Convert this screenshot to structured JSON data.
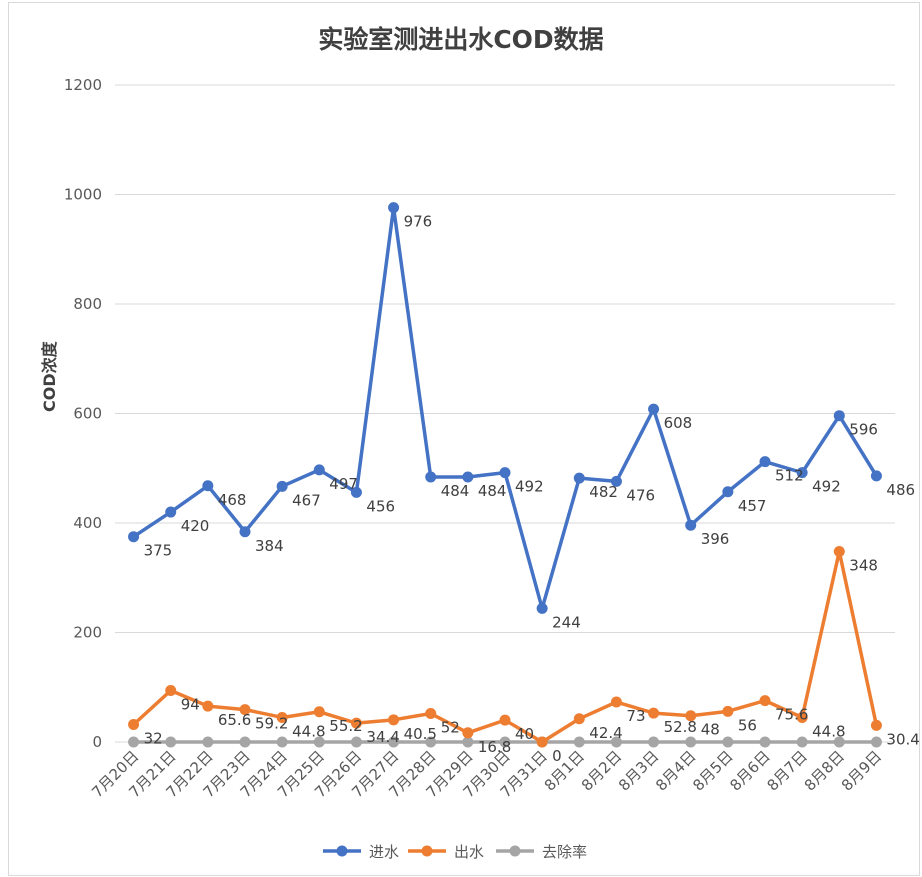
{
  "chart_data": {
    "type": "line",
    "title": "实验室测进出水COD数据",
    "xlabel": "",
    "ylabel": "COD浓度",
    "ylim": [
      0,
      1200
    ],
    "yticks": [
      0,
      200,
      400,
      600,
      800,
      1000,
      1200
    ],
    "grid": true,
    "legend_position": "bottom",
    "categories": [
      "7月20日",
      "7月21日",
      "7月22日",
      "7月23日",
      "7月24日",
      "7月25日",
      "7月26日",
      "7月27日",
      "7月28日",
      "7月29日",
      "7月30日",
      "7月31日",
      "8月1日",
      "8月2日",
      "8月3日",
      "8月4日",
      "8月5日",
      "8月6日",
      "8月7日",
      "8月8日",
      "8月9日"
    ],
    "series": [
      {
        "name": "进水",
        "color": "#4472C4",
        "values": [
          375,
          420,
          468,
          384,
          467,
          497,
          456,
          976,
          484,
          484,
          492,
          244,
          482,
          476,
          608,
          396,
          457,
          512,
          492,
          596,
          486
        ],
        "labels": [
          "375",
          "420",
          "468",
          "384",
          "467",
          "497",
          "456",
          "976",
          "484",
          "484",
          "492",
          "244",
          "482",
          "476",
          "608",
          "396",
          "457",
          "512",
          "492",
          "596",
          "486"
        ]
      },
      {
        "name": "出水",
        "color": "#ED7D31",
        "values": [
          32,
          94,
          65.6,
          59.2,
          44.8,
          55.2,
          34.4,
          40.5,
          52,
          16.8,
          40,
          0,
          42.4,
          73,
          52.8,
          48,
          56,
          75.6,
          44.8,
          348,
          30.4
        ],
        "labels": [
          "32",
          "94",
          "65.6",
          "59.2",
          "44.8",
          "55.2",
          "34.4",
          "40.5",
          "52",
          "16.8",
          "40",
          "0",
          "42.4",
          "73",
          "52.8",
          "48",
          "56",
          "75.6",
          "44.8",
          "348",
          "30.4"
        ]
      },
      {
        "name": "去除率",
        "color": "#A5A5A5",
        "values": [
          0,
          0,
          0,
          0,
          0,
          0,
          0,
          0,
          0,
          0,
          0,
          0,
          0,
          0,
          0,
          0,
          0,
          0,
          0,
          0,
          0
        ]
      }
    ]
  }
}
